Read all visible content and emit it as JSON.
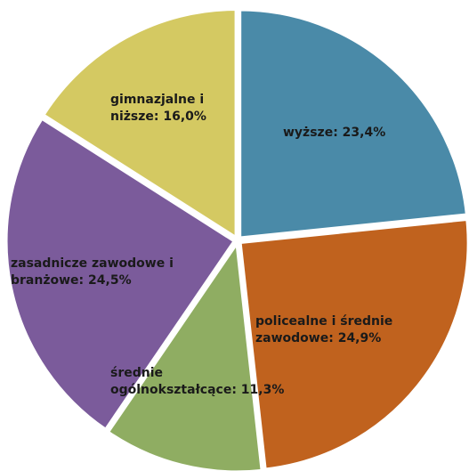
{
  "chart_data": {
    "type": "pie",
    "categories": [
      "wyższe",
      "policealne i średnie zawodowe",
      "średnie ogólnokształcące",
      "zasadnicze zawodowe i branżowe",
      "gimnazjalne i niższe"
    ],
    "values": [
      23.4,
      24.9,
      11.3,
      24.5,
      16.0
    ],
    "value_labels": [
      "23,4%",
      "24,9%",
      "11,3%",
      "24,5%",
      "16,0%"
    ],
    "colors": [
      "#4a8aa8",
      "#c0621e",
      "#8fad62",
      "#7b5b9b",
      "#d4c962"
    ]
  }
}
